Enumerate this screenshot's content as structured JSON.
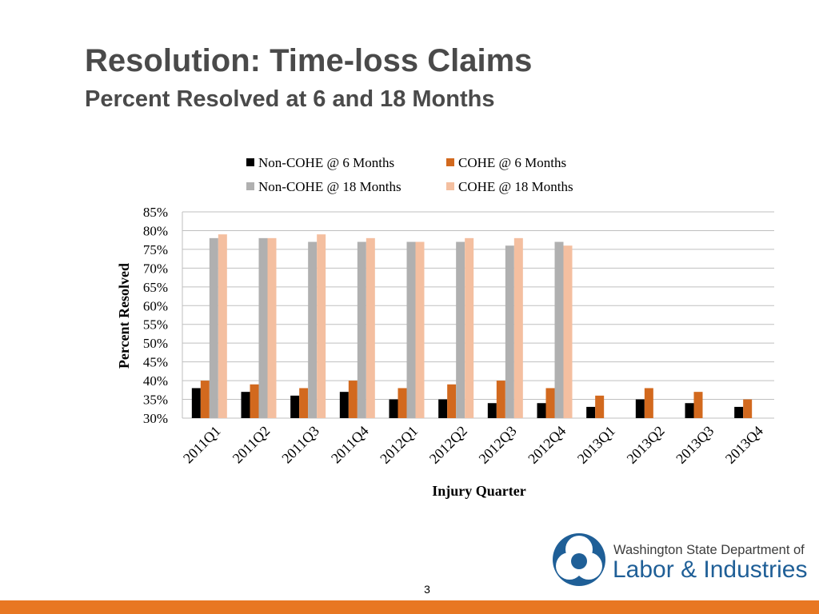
{
  "slide": {
    "title": "Resolution: Time-loss Claims",
    "subtitle": "Percent Resolved at 6 and 18 Months",
    "page_number": "3",
    "footer_color": "#e87722"
  },
  "logo": {
    "line1": "Washington State Department of",
    "line2": "Labor & Industries",
    "color": "#1f5f97"
  },
  "chart_data": {
    "type": "bar",
    "title": "",
    "xlabel": "Injury Quarter",
    "ylabel": "Percent Resolved",
    "ylim": [
      30,
      85
    ],
    "y_ticks": [
      "30%",
      "35%",
      "40%",
      "45%",
      "50%",
      "55%",
      "60%",
      "65%",
      "70%",
      "75%",
      "80%",
      "85%"
    ],
    "grid": true,
    "legend_position": "top",
    "categories": [
      "2011Q1",
      "2011Q2",
      "2011Q3",
      "2011Q4",
      "2012Q1",
      "2012Q2",
      "2012Q3",
      "2012Q4",
      "2013Q1",
      "2013Q2",
      "2013Q3",
      "2013Q4"
    ],
    "series": [
      {
        "name": "Non-COHE @ 6 Months",
        "color": "#000000",
        "values": [
          38,
          37,
          36,
          37,
          35,
          35,
          34,
          34,
          33,
          35,
          34,
          33
        ]
      },
      {
        "name": "COHE @ 6 Months",
        "color": "#d2691e",
        "values": [
          40,
          39,
          38,
          40,
          38,
          39,
          40,
          38,
          36,
          38,
          37,
          35
        ]
      },
      {
        "name": "Non-COHE @ 18 Months",
        "color": "#b0b0b0",
        "values": [
          78,
          78,
          77,
          77,
          77,
          77,
          76,
          77,
          null,
          null,
          null,
          null
        ]
      },
      {
        "name": "COHE @ 18 Months",
        "color": "#f4bfa0",
        "values": [
          79,
          78,
          79,
          78,
          77,
          78,
          78,
          76,
          null,
          null,
          null,
          null
        ]
      }
    ]
  }
}
